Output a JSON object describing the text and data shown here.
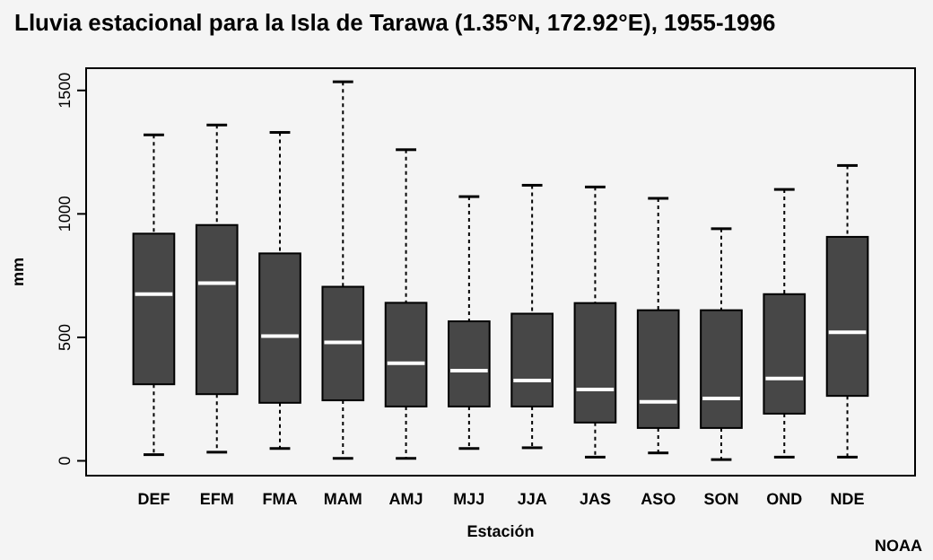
{
  "chart_data": {
    "type": "box",
    "title": "Lluvia estacional para la Isla de Tarawa (1.35°N, 172.92°E), 1955-1996",
    "xlabel": "Estación",
    "ylabel": "mm",
    "annotations": [
      "NOAA"
    ],
    "categories": [
      "DEF",
      "EFM",
      "FMA",
      "MAM",
      "AMJ",
      "MJJ",
      "JJA",
      "JAS",
      "ASO",
      "SON",
      "OND",
      "NDE"
    ],
    "color": "#474747",
    "ylim": [
      -60,
      1590
    ],
    "yticks": [
      0,
      500,
      1000,
      1500
    ],
    "boxes": [
      {
        "low": 25,
        "q1": 310,
        "median": 675,
        "q3": 920,
        "high": 1320
      },
      {
        "low": 35,
        "q1": 270,
        "median": 720,
        "q3": 955,
        "high": 1360
      },
      {
        "low": 50,
        "q1": 235,
        "median": 505,
        "q3": 840,
        "high": 1330
      },
      {
        "low": 10,
        "q1": 245,
        "median": 480,
        "q3": 705,
        "high": 1535
      },
      {
        "low": 10,
        "q1": 220,
        "median": 395,
        "q3": 640,
        "high": 1260
      },
      {
        "low": 50,
        "q1": 220,
        "median": 365,
        "q3": 565,
        "high": 1070
      },
      {
        "low": 53,
        "q1": 220,
        "median": 325,
        "q3": 596,
        "high": 1116
      },
      {
        "low": 15,
        "q1": 155,
        "median": 289,
        "q3": 639,
        "high": 1109
      },
      {
        "low": 32,
        "q1": 133,
        "median": 239,
        "q3": 610,
        "high": 1063
      },
      {
        "low": 5,
        "q1": 133,
        "median": 253,
        "q3": 610,
        "high": 940
      },
      {
        "low": 15,
        "q1": 191,
        "median": 333,
        "q3": 675,
        "high": 1099
      },
      {
        "low": 15,
        "q1": 263,
        "median": 521,
        "q3": 907,
        "high": 1196
      }
    ]
  }
}
